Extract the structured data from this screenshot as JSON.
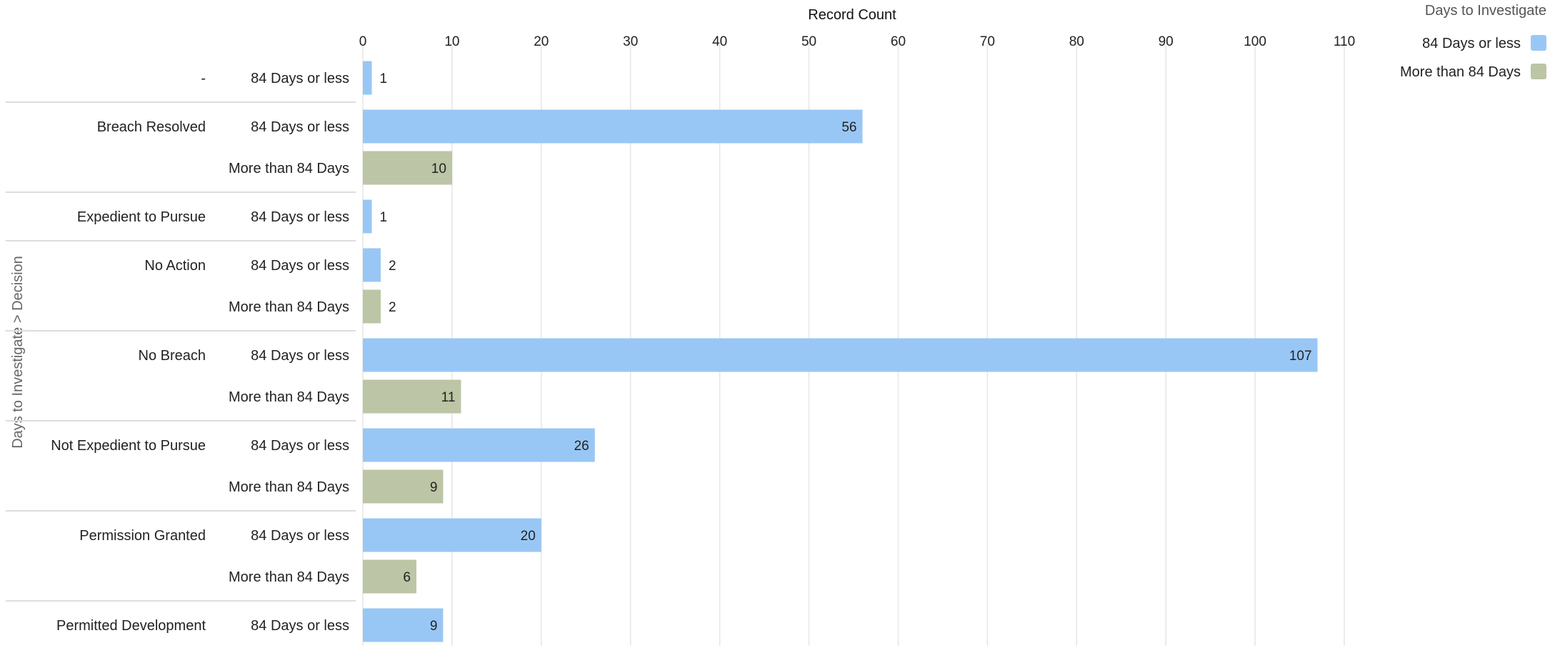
{
  "chart_data": {
    "type": "bar",
    "orientation": "horizontal",
    "xlabel": "Record Count",
    "ylabel": "Days to Investigate  >  Decision",
    "xlim": [
      0,
      110
    ],
    "xticks": [
      "0",
      "10",
      "20",
      "30",
      "40",
      "50",
      "60",
      "70",
      "80",
      "90",
      "100",
      "110"
    ],
    "grid": true,
    "legend": {
      "title": "Days to Investigate",
      "placement": "top-right",
      "items": [
        {
          "name": "84 Days or less",
          "color": "#99c7f5"
        },
        {
          "name": "More than 84 Days",
          "color": "#bcc5a5"
        }
      ]
    },
    "groups": [
      {
        "category": "-",
        "rows": [
          {
            "series": "84 Days or less",
            "value": 1,
            "label": "1"
          }
        ]
      },
      {
        "category": "Breach Resolved",
        "rows": [
          {
            "series": "84 Days or less",
            "value": 56,
            "label": "56"
          },
          {
            "series": "More than 84 Days",
            "value": 10,
            "label": "10"
          }
        ]
      },
      {
        "category": "Expedient to Pursue",
        "rows": [
          {
            "series": "84 Days or less",
            "value": 1,
            "label": "1"
          }
        ]
      },
      {
        "category": "No Action",
        "rows": [
          {
            "series": "84 Days or less",
            "value": 2,
            "label": "2"
          },
          {
            "series": "More than 84 Days",
            "value": 2,
            "label": "2"
          }
        ]
      },
      {
        "category": "No Breach",
        "rows": [
          {
            "series": "84 Days or less",
            "value": 107,
            "label": "107"
          },
          {
            "series": "More than 84 Days",
            "value": 11,
            "label": "11"
          }
        ]
      },
      {
        "category": "Not Expedient to Pursue",
        "rows": [
          {
            "series": "84 Days or less",
            "value": 26,
            "label": "26"
          },
          {
            "series": "More than 84 Days",
            "value": 9,
            "label": "9"
          }
        ]
      },
      {
        "category": "Permission Granted",
        "rows": [
          {
            "series": "84 Days or less",
            "value": 20,
            "label": "20"
          },
          {
            "series": "More than 84 Days",
            "value": 6,
            "label": "6"
          }
        ]
      },
      {
        "category": "Permitted Development",
        "rows": [
          {
            "series": "84 Days or less",
            "value": 9,
            "label": "9"
          }
        ]
      }
    ]
  }
}
